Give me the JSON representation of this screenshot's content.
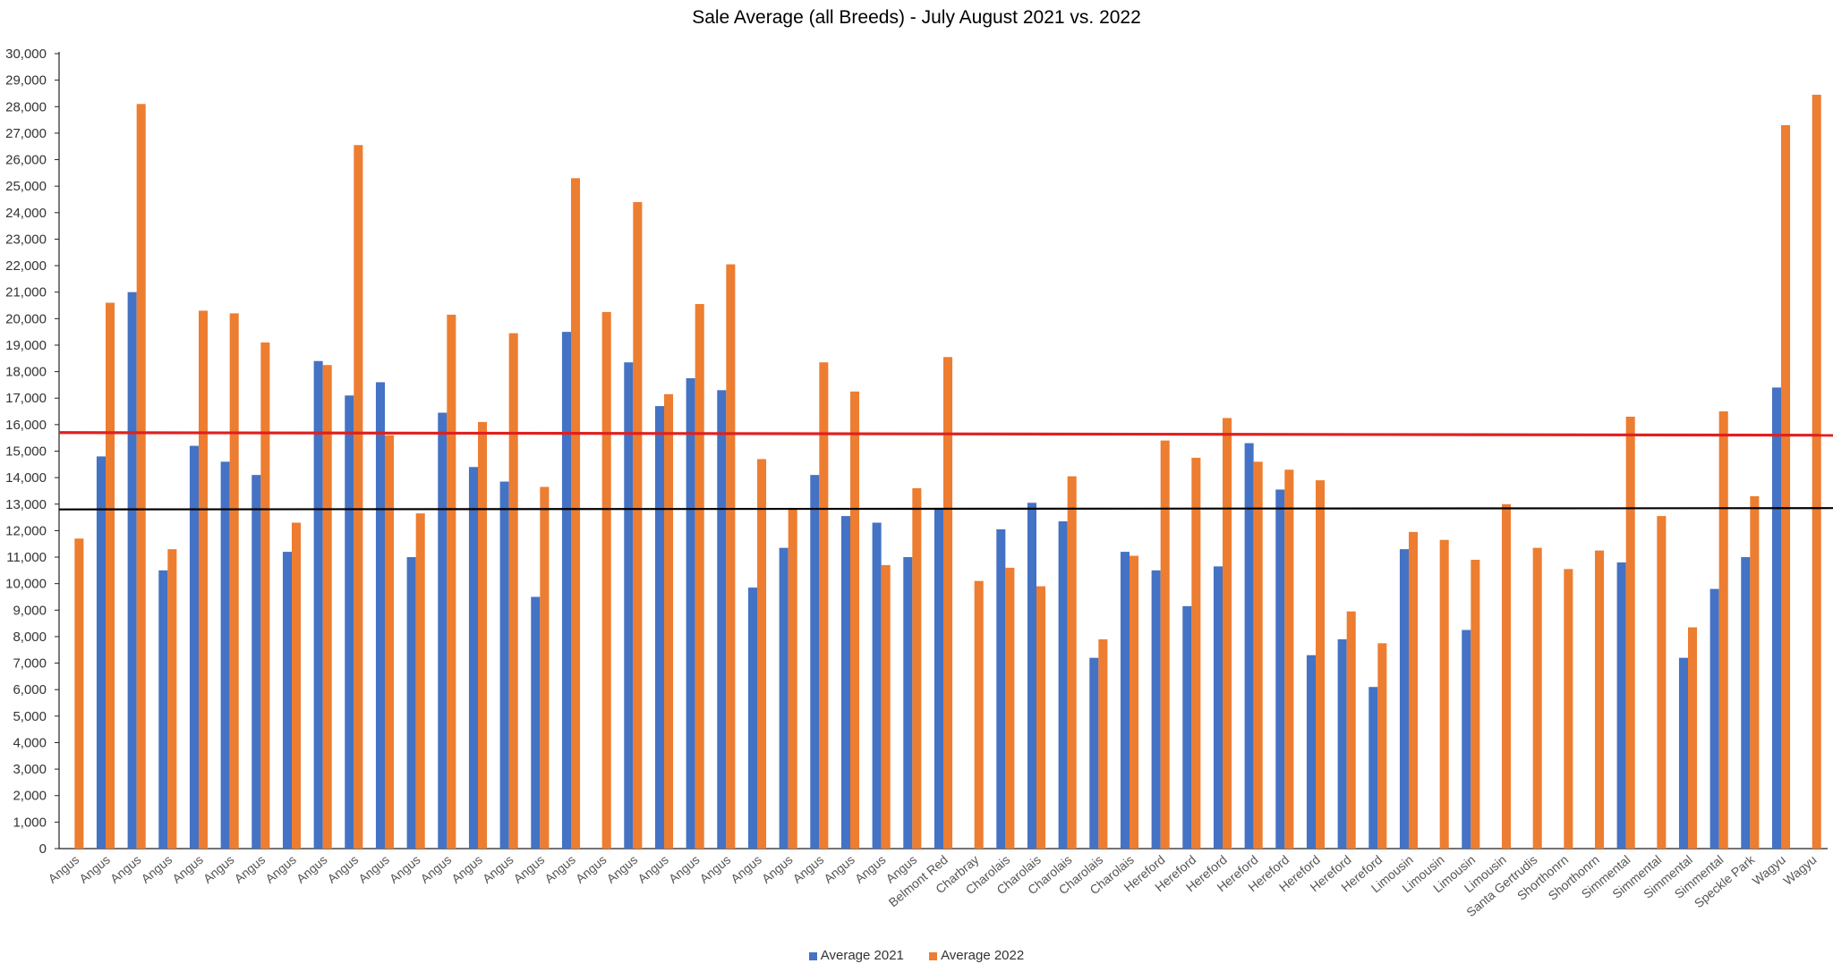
{
  "chart_data": {
    "type": "bar",
    "title": "Sale Average (all Breeds) - July August 2021 vs. 2022",
    "xlabel": "",
    "ylabel": "",
    "ylim": [
      0,
      30000
    ],
    "ytick_labels": [
      "0",
      "1,000",
      "2,000",
      "3,000",
      "4,000",
      "5,000",
      "6,000",
      "7,000",
      "8,000",
      "9,000",
      "10,000",
      "11,000",
      "12,000",
      "13,000",
      "14,000",
      "15,000",
      "16,000",
      "17,000",
      "18,000",
      "19,000",
      "20,000",
      "21,000",
      "22,000",
      "23,000",
      "24,000",
      "25,000",
      "26,000",
      "27,000",
      "28,000",
      "29,000",
      "30,000"
    ],
    "grid": false,
    "legend_position": "bottom",
    "categories": [
      "Angus",
      "Angus",
      "Angus",
      "Angus",
      "Angus",
      "Angus",
      "Angus",
      "Angus",
      "Angus",
      "Angus",
      "Angus",
      "Angus",
      "Angus",
      "Angus",
      "Angus",
      "Angus",
      "Angus",
      "Angus",
      "Angus",
      "Angus",
      "Angus",
      "Angus",
      "Angus",
      "Angus",
      "Angus",
      "Angus",
      "Angus",
      "Angus",
      "Belmont Red",
      "Charbray",
      "Charolais",
      "Charolais",
      "Charolais",
      "Charolais",
      "Charolais",
      "Hereford",
      "Hereford",
      "Hereford",
      "Hereford",
      "Hereford",
      "Hereford",
      "Hereford",
      "Hereford",
      "Limousin",
      "Limousin",
      "Limousin",
      "Limousin",
      "Santa Gertrudis",
      "Shorthonrn",
      "Shorthonrn",
      "Simmental",
      "Simmental",
      "Simmental",
      "Simmental",
      "Speckle Park",
      "Wagyu",
      "Wagyu"
    ],
    "series": [
      {
        "name": "Average 2021",
        "color": "#4472C4",
        "values": [
          0,
          14800,
          21000,
          10500,
          15200,
          14600,
          14100,
          11200,
          18400,
          17100,
          17600,
          11000,
          16450,
          14400,
          13850,
          9500,
          19500,
          0,
          18350,
          16700,
          17750,
          17300,
          9850,
          11350,
          14100,
          12550,
          12300,
          11000,
          12800,
          0,
          12050,
          13050,
          12350,
          7200,
          11200,
          10500,
          9150,
          10650,
          15300,
          13550,
          7300,
          7900,
          6100,
          11300,
          0,
          8250,
          0,
          0,
          0,
          0,
          10800,
          0,
          7200,
          9800,
          11000,
          17400,
          0
        ]
      },
      {
        "name": "Average 2022",
        "color": "#ED7D31",
        "values": [
          11700,
          20600,
          28100,
          11300,
          20300,
          20200,
          19100,
          12300,
          18250,
          26550,
          15600,
          12650,
          20150,
          16100,
          19450,
          13650,
          25300,
          20250,
          24400,
          17150,
          20550,
          22050,
          14700,
          12850,
          18350,
          17250,
          10700,
          13600,
          18550,
          10100,
          10600,
          9900,
          14050,
          7900,
          11050,
          15400,
          14750,
          16250,
          14600,
          14300,
          13900,
          8950,
          7750,
          11950,
          11650,
          10900,
          13000,
          11350,
          10550,
          11250,
          16300,
          12550,
          8350,
          16500,
          13300,
          27300,
          28450
        ]
      }
    ],
    "reference_lines": [
      {
        "color": "#E02020",
        "y_start": 15700,
        "y_end": 15600
      },
      {
        "color": "#000000",
        "y_start": 12800,
        "y_end": 12850
      }
    ]
  }
}
